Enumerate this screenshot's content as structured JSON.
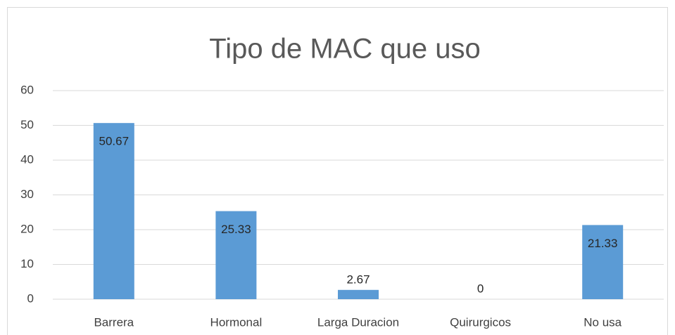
{
  "chart_data": {
    "type": "bar",
    "title": "Tipo de MAC que uso",
    "categories": [
      "Barrera",
      "Hormonal",
      "Larga Duracion",
      "Quirurgicos",
      "No usa"
    ],
    "values": [
      50.67,
      25.33,
      2.67,
      0,
      21.33
    ],
    "color": "#5b9bd5",
    "ylim": [
      0,
      60
    ],
    "yticks": [
      0,
      10,
      20,
      30,
      40,
      50,
      60
    ],
    "grid": true
  }
}
